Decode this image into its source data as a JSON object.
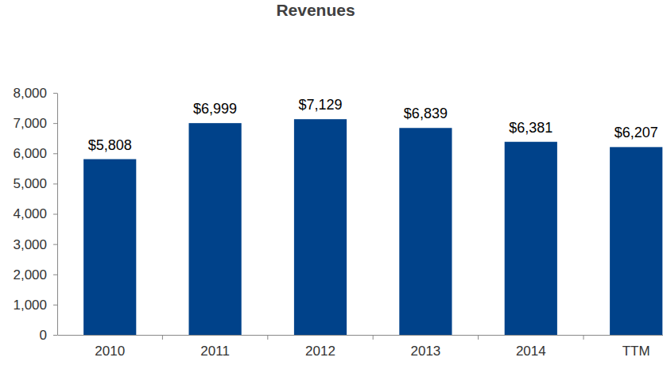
{
  "chart_data": {
    "type": "bar",
    "title": "Revenues",
    "categories": [
      "2010",
      "2011",
      "2012",
      "2013",
      "2014",
      "TTM"
    ],
    "values": [
      5808,
      6999,
      7129,
      6839,
      6381,
      6207
    ],
    "value_labels": [
      "$5,808",
      "$6,999",
      "$7,129",
      "$6,839",
      "$6,381",
      "$6,207"
    ],
    "color": "#00428a",
    "ylim": [
      0,
      8000
    ],
    "yticks": [
      0,
      {
        "value": 1000,
        "label": "1,000"
      },
      {
        "value": 2000,
        "label": "2,000"
      },
      {
        "value": 3000,
        "label": "3,000"
      },
      {
        "value": 4000,
        "label": "4,000"
      },
      {
        "value": 5000,
        "label": "5,000"
      },
      {
        "value": 6000,
        "label": "6,000"
      },
      {
        "value": 7000,
        "label": "7,000"
      },
      {
        "value": 8000,
        "label": "8,000"
      }
    ],
    "grid": false,
    "data_labels": true
  }
}
